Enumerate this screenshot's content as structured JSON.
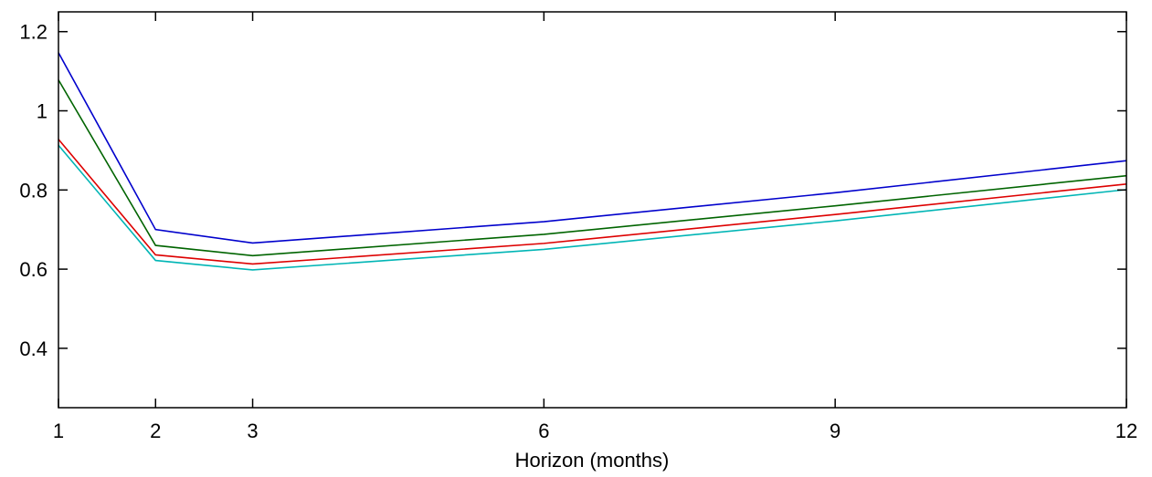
{
  "chart_data": {
    "type": "line",
    "title": "",
    "xlabel": "Horizon (months)",
    "ylabel": "",
    "x": [
      1,
      2,
      3,
      6,
      9,
      12
    ],
    "xlim": [
      1,
      12
    ],
    "ylim": [
      0.25,
      1.25
    ],
    "xticks": [
      1,
      2,
      3,
      6,
      9,
      12
    ],
    "yticks": [
      0.4,
      0.6,
      0.8,
      1,
      1.2
    ],
    "xtick_labels": [
      "1",
      "2",
      "3",
      "6",
      "9",
      "12"
    ],
    "ytick_labels": [
      "0.4",
      "0.6",
      "0.8",
      "1",
      "1.2"
    ],
    "grid": false,
    "legend": "none",
    "series": [
      {
        "color": "#0000cc",
        "values": [
          1.147,
          0.7,
          0.666,
          0.72,
          0.793,
          0.874
        ]
      },
      {
        "color": "#006400",
        "values": [
          1.078,
          0.66,
          0.634,
          0.688,
          0.76,
          0.836
        ]
      },
      {
        "color": "#dd0000",
        "values": [
          0.928,
          0.636,
          0.613,
          0.665,
          0.738,
          0.815
        ]
      },
      {
        "color": "#00b5b5",
        "values": [
          0.913,
          0.622,
          0.598,
          0.65,
          0.722,
          0.801
        ]
      }
    ]
  }
}
